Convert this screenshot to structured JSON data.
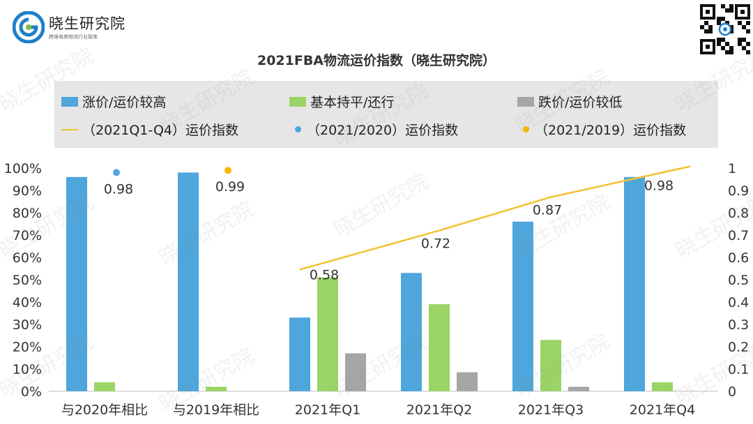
{
  "brand": {
    "name": "晓生研究院",
    "tagline": "跨境电商物流行业智库",
    "watermark": "晓生研究院"
  },
  "legend": {
    "up": "涨价/运价较高",
    "flat": "基本持平/还行",
    "down": "跌价/运价较低",
    "line": "（2021Q1-Q4）运价指数",
    "dot2020": "（2021/2020）运价指数",
    "dot2019": "（2021/2019）运价指数"
  },
  "colors": {
    "up": "#4ea6dc",
    "flat": "#9ad467",
    "down": "#a6a6a6",
    "line": "#f2c12e",
    "dot2020": "#4ea6dc",
    "dot2019": "#f5b800"
  },
  "chart_data": {
    "type": "bar",
    "title": "2021FBA物流运价指数（晓生研究院）",
    "categories": [
      "与2020年相比",
      "与2019年相比",
      "2021年Q1",
      "2021年Q2",
      "2021年Q3",
      "2021年Q4"
    ],
    "series": [
      {
        "name": "涨价/运价较高",
        "values": [
          0.96,
          0.98,
          0.33,
          0.53,
          0.76,
          0.96
        ]
      },
      {
        "name": "基本持平/还行",
        "values": [
          0.04,
          0.02,
          0.51,
          0.39,
          0.23,
          0.04
        ]
      },
      {
        "name": "跌价/运价较低",
        "values": [
          0.0,
          0.0,
          0.17,
          0.085,
          0.02,
          0.0
        ]
      }
    ],
    "index_line": {
      "name": "（2021Q1-Q4）运价指数",
      "categories": [
        "2021年Q1",
        "2021年Q2",
        "2021年Q3",
        "2021年Q4"
      ],
      "values": [
        0.58,
        0.72,
        0.87,
        0.98
      ]
    },
    "index_points": [
      {
        "name": "（2021/2020）运价指数",
        "category": "与2020年相比",
        "value": 0.98
      },
      {
        "name": "（2021/2019）运价指数",
        "category": "与2019年相比",
        "value": 0.99
      }
    ],
    "y_left": {
      "ticks": [
        "0%",
        "10%",
        "20%",
        "30%",
        "40%",
        "50%",
        "60%",
        "70%",
        "80%",
        "90%",
        "100%"
      ],
      "ylim": [
        0,
        1
      ]
    },
    "y_right": {
      "ticks": [
        "0",
        "0.1",
        "0.2",
        "0.3",
        "0.4",
        "0.5",
        "0.6",
        "0.7",
        "0.8",
        "0.9",
        "1"
      ],
      "ylim": [
        0,
        1
      ]
    },
    "legend_position": "top",
    "grid": false
  }
}
